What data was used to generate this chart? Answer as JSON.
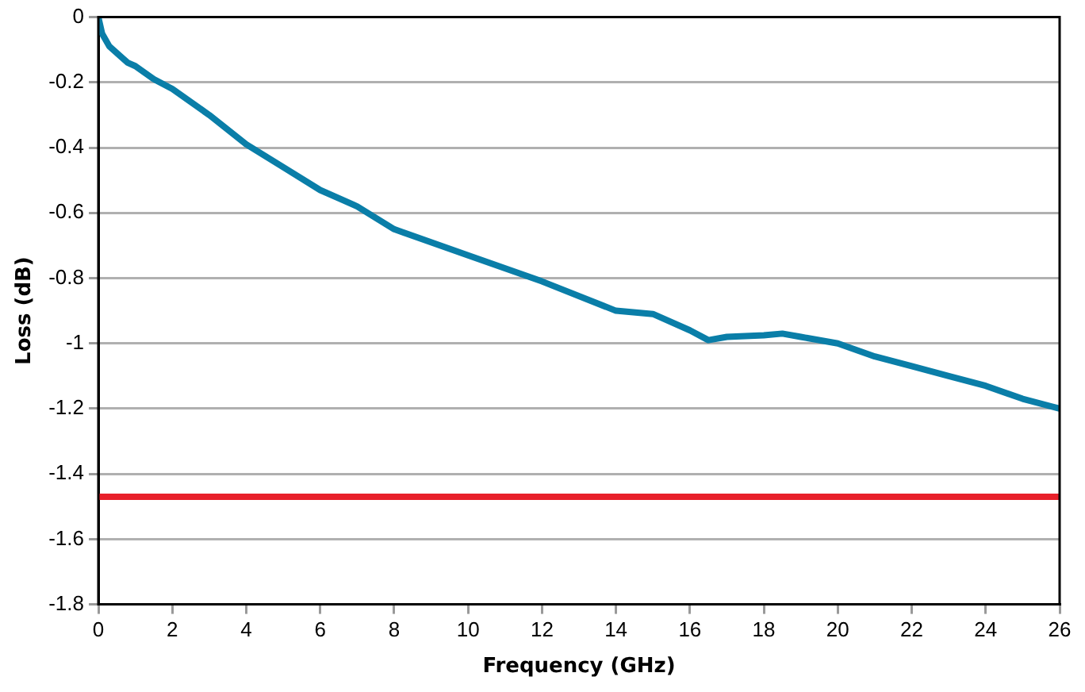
{
  "chart_data": {
    "type": "line",
    "xlabel": "Frequency (GHz)",
    "ylabel": "Loss (dB)",
    "series": [
      {
        "color": "#0a7ea8",
        "x": [
          0,
          0.1,
          0.3,
          0.6,
          0.8,
          1,
          1.5,
          2,
          3,
          4,
          5,
          6,
          7,
          8,
          10,
          12,
          14,
          15,
          16,
          16.5,
          17,
          18,
          18.5,
          19,
          20,
          21,
          22,
          23,
          24,
          25,
          26
        ],
        "values": [
          0,
          -0.05,
          -0.09,
          -0.12,
          -0.14,
          -0.15,
          -0.19,
          -0.22,
          -0.3,
          -0.39,
          -0.46,
          -0.53,
          -0.58,
          -0.65,
          -0.73,
          -0.81,
          -0.9,
          -0.91,
          -0.96,
          -0.99,
          -0.98,
          -0.975,
          -0.97,
          -0.98,
          -1.0,
          -1.04,
          -1.07,
          -1.1,
          -1.13,
          -1.17,
          -1.2
        ]
      }
    ],
    "xlim": [
      0,
      26
    ],
    "xticks": [
      0,
      2,
      4,
      6,
      8,
      10,
      12,
      14,
      16,
      18,
      20,
      22,
      24,
      26
    ],
    "ylim": [
      -1.8,
      0
    ],
    "yticks": [
      -1.8,
      -1.6,
      -1.4,
      -1.2,
      -1,
      -0.8,
      -0.6,
      -0.4,
      -0.2,
      0
    ],
    "ref_lines": [
      {
        "axis": "y",
        "value": -1.47,
        "color": "#e8202a"
      }
    ],
    "grid": "y",
    "legend": false,
    "marker": "none",
    "line_style": "solid"
  }
}
